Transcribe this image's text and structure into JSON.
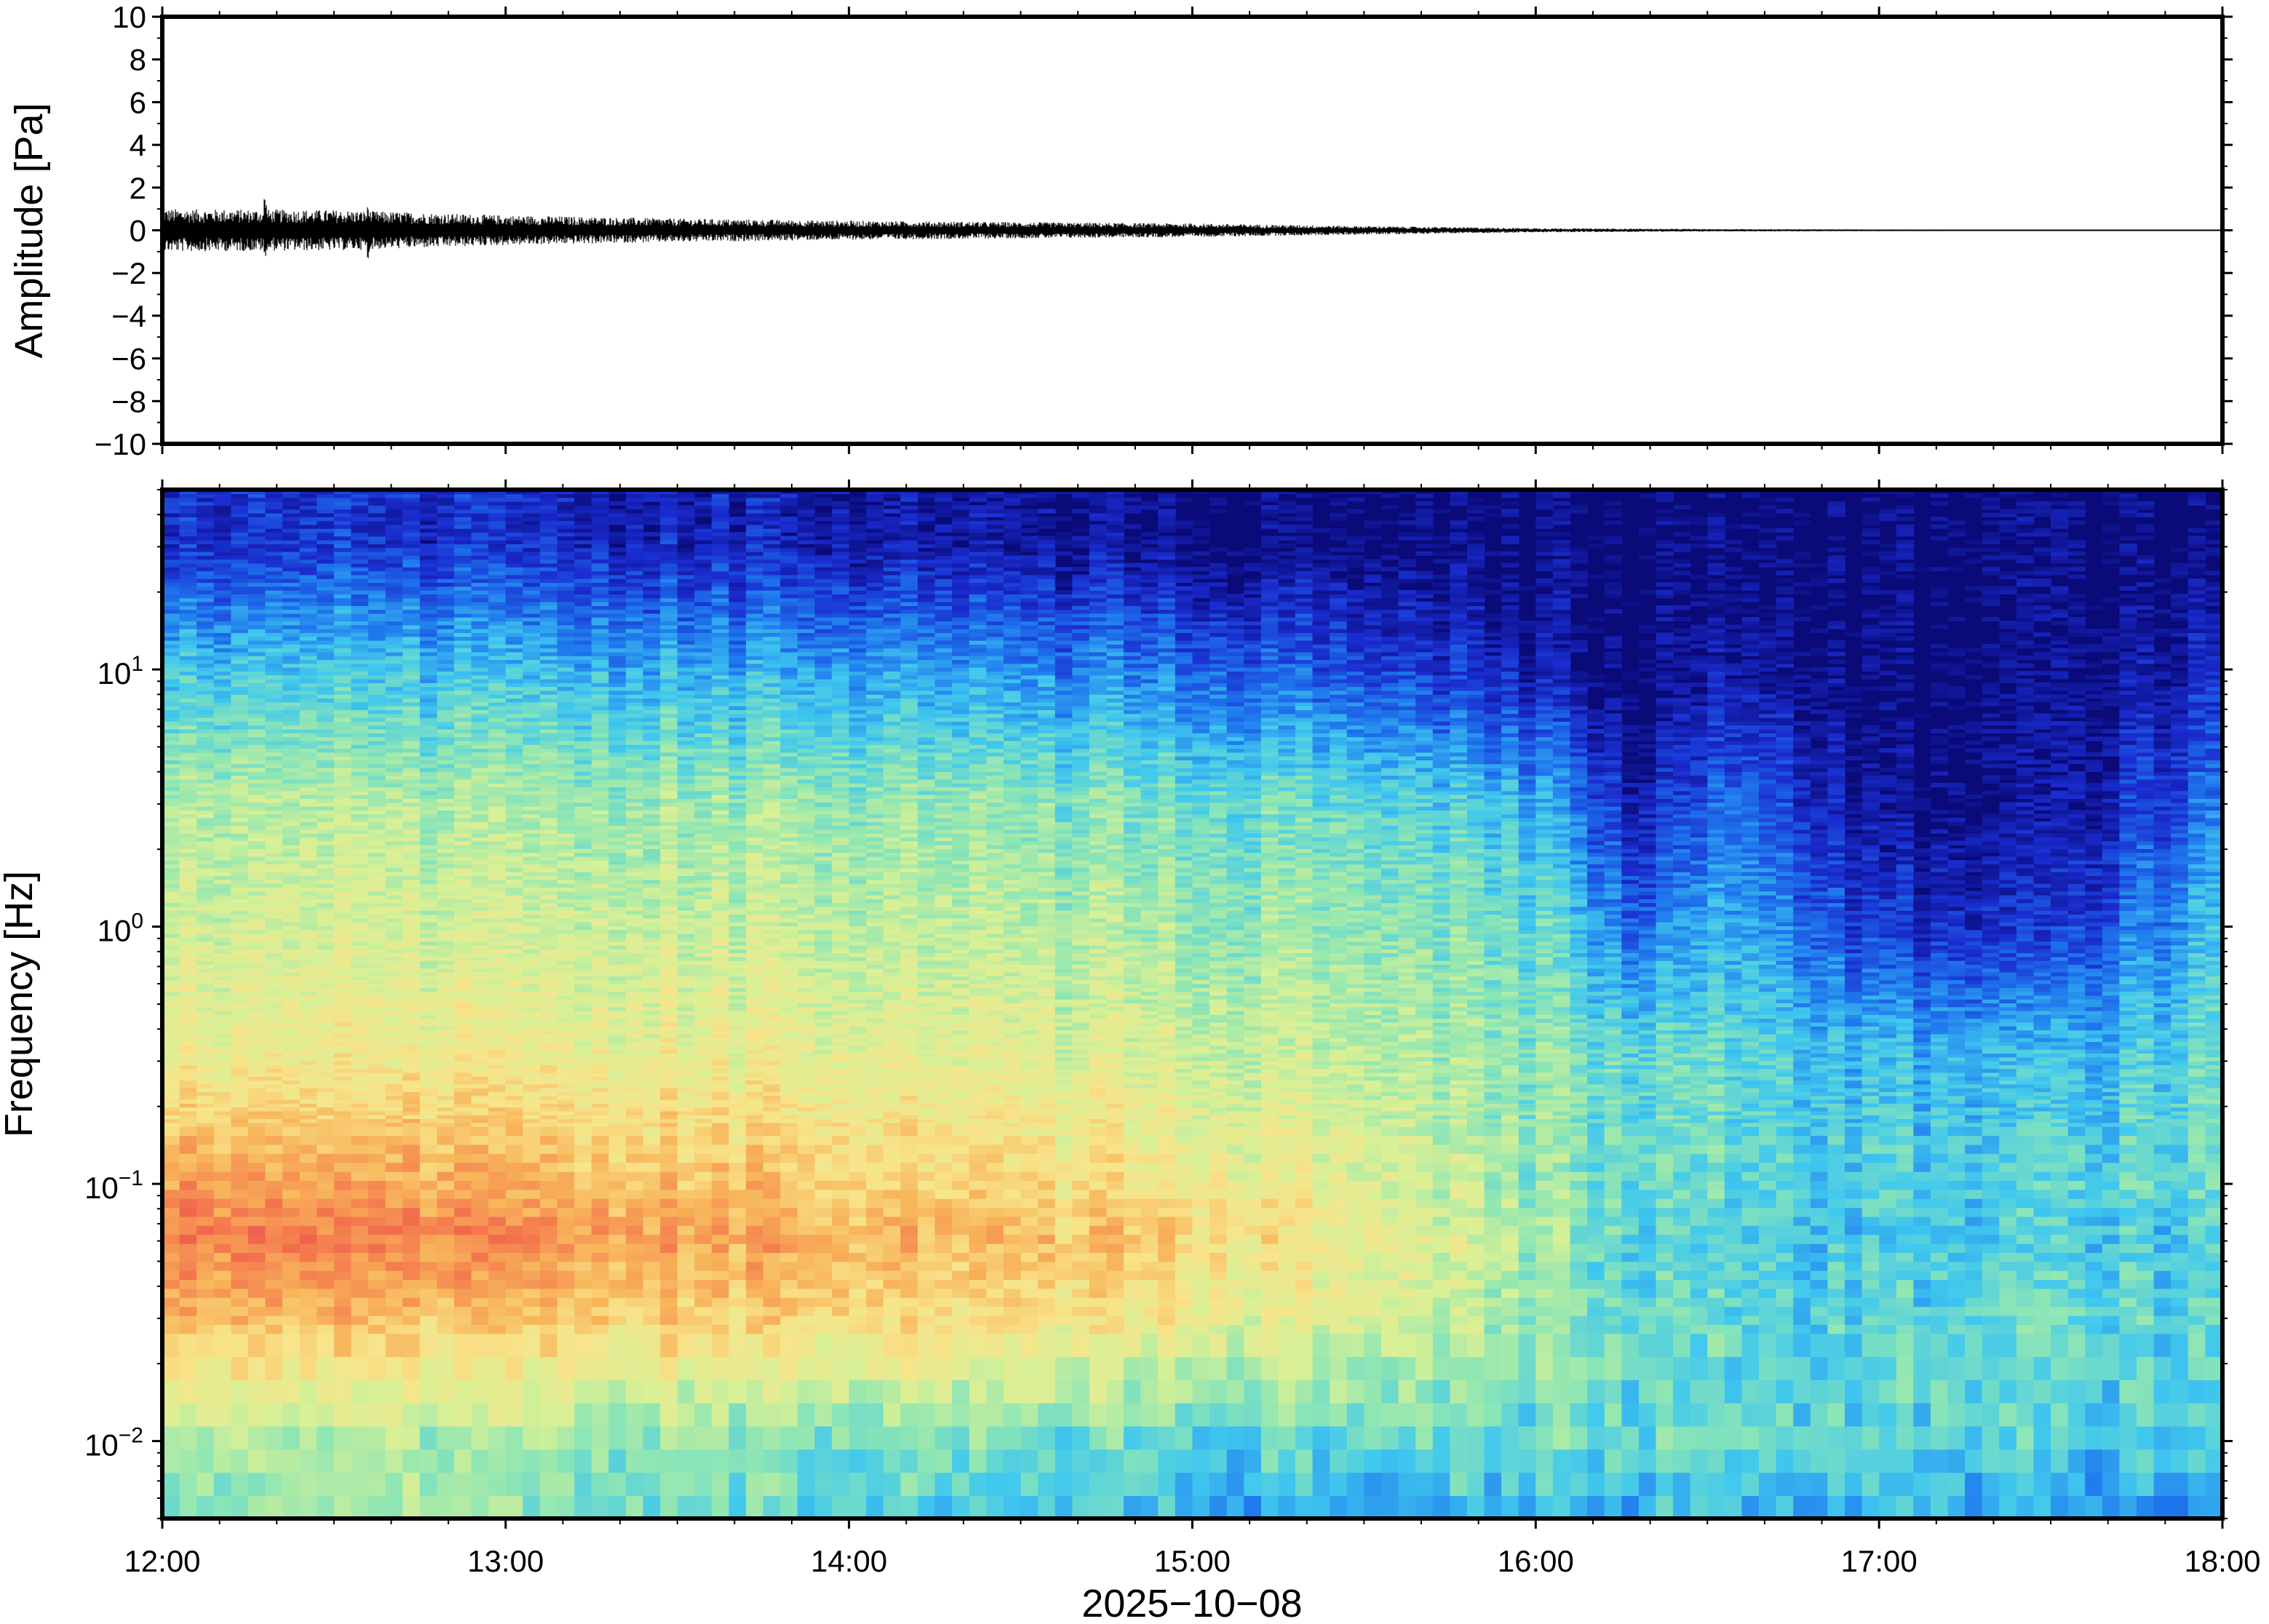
{
  "chart_data": [
    {
      "type": "line",
      "panel": "waveform",
      "ylabel": "Amplitude [Pa]",
      "ylim": [
        -10,
        10
      ],
      "yticks": [
        10,
        8,
        6,
        4,
        2,
        0,
        -2,
        -4,
        -6,
        -8,
        -10
      ],
      "ytick_labels": [
        "10",
        "8",
        "6",
        "4",
        "2",
        "0",
        "−2",
        "−4",
        "−6",
        "−8",
        "−10"
      ],
      "x_range": [
        "12:00",
        "18:00"
      ],
      "envelope": {
        "x_hours": [
          12.0,
          12.5,
          13.0,
          13.5,
          14.0,
          14.5,
          15.0,
          15.5,
          16.0,
          16.5,
          17.0,
          17.5,
          18.0
        ],
        "amplitude": [
          1.0,
          0.95,
          0.7,
          0.55,
          0.45,
          0.38,
          0.32,
          0.2,
          0.1,
          0.06,
          0.04,
          0.03,
          0.03
        ]
      },
      "peaks": [
        {
          "x_hour": 12.3,
          "max": 1.7,
          "min": -1.2
        },
        {
          "x_hour": 12.6,
          "max": 1.1,
          "min": -1.4
        }
      ],
      "line_color": "#000000"
    },
    {
      "type": "heatmap",
      "panel": "spectrogram",
      "ylabel": "Frequency [Hz]",
      "yscale": "log",
      "ylim": [
        0.005,
        50
      ],
      "yticks": [
        0.01,
        0.1,
        1,
        10
      ],
      "ytick_labels": [
        {
          "base": "10",
          "exp": "−2"
        },
        {
          "base": "10",
          "exp": "−1"
        },
        {
          "base": "10",
          "exp": "0"
        },
        {
          "base": "10",
          "exp": "1"
        }
      ],
      "xlabel": "2025−10−08",
      "xlim": [
        "12:00",
        "18:00"
      ],
      "xticks": [
        "12:00",
        "13:00",
        "14:00",
        "15:00",
        "16:00",
        "17:00",
        "18:00"
      ],
      "colormap": [
        "#0a0a78",
        "#1a2ccf",
        "#1f78ee",
        "#40c8ee",
        "#8ee6b4",
        "#d8f096",
        "#f8e48a",
        "#f8b45a",
        "#f47a4e",
        "#e84a4c"
      ],
      "levels_description": "relative power 0..1",
      "level_profile": {
        "time_hours": [
          12.0,
          13.0,
          14.0,
          15.0,
          15.5,
          16.0,
          16.3,
          16.6,
          17.0,
          17.5,
          18.0
        ],
        "log10_freq": [
          -2.3,
          -2.0,
          -1.5,
          -1.2,
          -1.0,
          -0.5,
          0.0,
          0.5,
          1.0,
          1.5
        ],
        "rows": [
          [
            0.45,
            0.5,
            0.78,
            0.9,
            0.82,
            0.62,
            0.55,
            0.5,
            0.34,
            0.12
          ],
          [
            0.45,
            0.48,
            0.74,
            0.85,
            0.78,
            0.62,
            0.55,
            0.48,
            0.32,
            0.1
          ],
          [
            0.36,
            0.42,
            0.7,
            0.78,
            0.72,
            0.6,
            0.52,
            0.46,
            0.28,
            0.06
          ],
          [
            0.3,
            0.4,
            0.64,
            0.72,
            0.66,
            0.56,
            0.48,
            0.42,
            0.22,
            0.02
          ],
          [
            0.28,
            0.38,
            0.58,
            0.62,
            0.58,
            0.52,
            0.46,
            0.38,
            0.16,
            0.0
          ],
          [
            0.3,
            0.4,
            0.46,
            0.48,
            0.46,
            0.44,
            0.4,
            0.3,
            0.06,
            0.0
          ],
          [
            0.32,
            0.4,
            0.4,
            0.38,
            0.4,
            0.4,
            0.22,
            0.08,
            0.0,
            0.0
          ],
          [
            0.3,
            0.38,
            0.38,
            0.36,
            0.38,
            0.38,
            0.3,
            0.2,
            0.05,
            0.0
          ],
          [
            0.3,
            0.38,
            0.38,
            0.34,
            0.36,
            0.32,
            0.12,
            0.02,
            0.0,
            0.0
          ],
          [
            0.28,
            0.36,
            0.38,
            0.34,
            0.36,
            0.3,
            0.1,
            0.02,
            0.0,
            0.0
          ],
          [
            0.24,
            0.34,
            0.38,
            0.36,
            0.4,
            0.4,
            0.34,
            0.22,
            0.1,
            0.0
          ]
        ]
      }
    }
  ]
}
